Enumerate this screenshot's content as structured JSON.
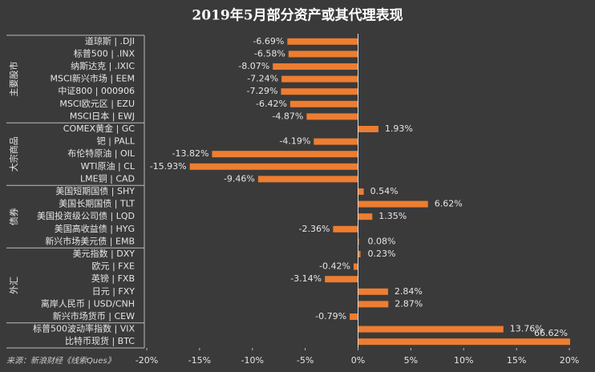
{
  "chart_data": {
    "type": "bar",
    "orientation": "horizontal",
    "title": "2019年5月部分资产或其代理表现",
    "source": "来源：新浪财经《线索Ques》",
    "color": "#ed7d31",
    "xlim": [
      -20,
      20
    ],
    "xticks": [
      {
        "value": -20,
        "label": "-20%"
      },
      {
        "value": -15,
        "label": "-15%"
      },
      {
        "value": -10,
        "label": "-10%"
      },
      {
        "value": -5,
        "label": "-5%"
      },
      {
        "value": 0,
        "label": "0%"
      },
      {
        "value": 5,
        "label": "5%"
      },
      {
        "value": 10,
        "label": "10%"
      },
      {
        "value": 15,
        "label": "15%"
      },
      {
        "value": 20,
        "label": "20%"
      }
    ],
    "groups": [
      {
        "name": "主要股市",
        "categories": [
          "道琼斯 | .DJI",
          "标普500 | .INX",
          "纳斯达克 | .IXIC",
          "MSCI新兴市场 | EEM",
          "中证800 | 000906",
          "MSCI欧元区 | EZU",
          "MSCI日本 | EWJ"
        ],
        "values": [
          -6.69,
          -6.58,
          -8.07,
          -7.24,
          -7.29,
          -6.42,
          -4.87
        ],
        "value_labels": [
          "-6.69%",
          "-6.58%",
          "-8.07%",
          "-7.24%",
          "-7.29%",
          "-6.42%",
          "-4.87%"
        ]
      },
      {
        "name": "大宗商品",
        "categories": [
          "COMEX黄金 | GC",
          "钯 | PALL",
          "布伦特原油 | OIL",
          "WTI原油 | CL",
          "LME铜 | CAD"
        ],
        "values": [
          1.93,
          -4.19,
          -13.82,
          -15.93,
          -9.46
        ],
        "value_labels": [
          "1.93%",
          "-4.19%",
          "-13.82%",
          "-15.93%",
          "-9.46%"
        ]
      },
      {
        "name": "债券",
        "categories": [
          "美国短期国债 | SHY",
          "美国长期国债 | TLT",
          "美国投资级公司债 | LQD",
          "美国高收益债 | HYG",
          "新兴市场美元债 | EMB"
        ],
        "values": [
          0.54,
          6.62,
          1.35,
          -2.36,
          0.08
        ],
        "value_labels": [
          "0.54%",
          "6.62%",
          "1.35%",
          "-2.36%",
          "0.08%"
        ]
      },
      {
        "name": "外汇",
        "categories": [
          "美元指数 | DXY",
          "欧元 | FXE",
          "英镑 | FXB",
          "日元 | FXY",
          "离岸人民币 | USD/CNH",
          "新兴市场货币 | CEW"
        ],
        "values": [
          0.23,
          -0.42,
          -3.14,
          2.84,
          2.87,
          -0.79
        ],
        "value_labels": [
          "0.23%",
          "-0.42%",
          "-3.14%",
          "2.84%",
          "2.87%",
          "-0.79%"
        ]
      },
      {
        "name": null,
        "categories": [
          "标普500波动率指数 | VIX",
          "比特币现货 | BTC"
        ],
        "values": [
          13.76,
          66.62
        ],
        "value_labels": [
          "13.76%",
          "66.62%"
        ]
      }
    ]
  }
}
